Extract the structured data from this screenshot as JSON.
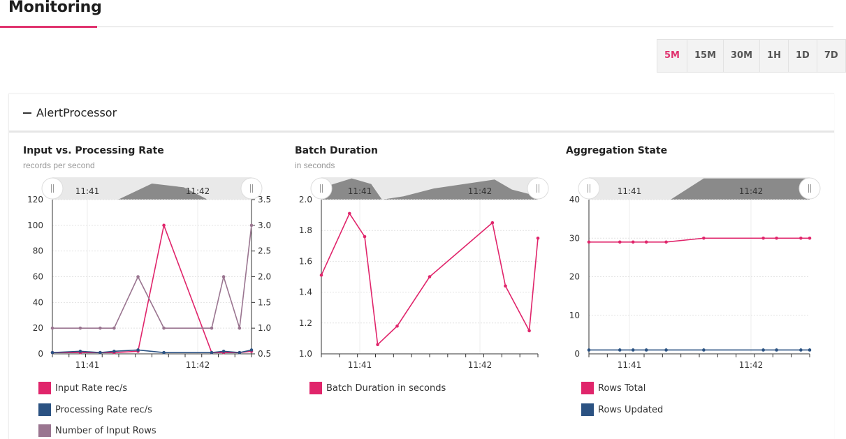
{
  "page": {
    "title": "Monitoring"
  },
  "time_range": {
    "options": [
      "5M",
      "15M",
      "30M",
      "1H",
      "1D",
      "7D"
    ],
    "selected": "5M",
    "accent": "#e0336f"
  },
  "panel": {
    "title": "AlertProcessor",
    "collapse_icon": "minus-icon"
  },
  "colors": {
    "input": "#e0256b",
    "processing": "#2b5282",
    "rows_input": "#9a7590",
    "navigator": "#8a8a8a"
  },
  "charts": [
    {
      "title": "Input vs. Processing Rate",
      "subtitle": "records per second",
      "navigator_labels": [
        "11:41",
        "11:42"
      ],
      "legend": [
        "Input Rate rec/s",
        "Processing Rate rec/s",
        "Number of Input Rows"
      ]
    },
    {
      "title": "Batch Duration",
      "subtitle": "in seconds",
      "navigator_labels": [
        "11:41",
        "11:42"
      ],
      "legend": [
        "Batch Duration in seconds"
      ]
    },
    {
      "title": "Aggregation State",
      "subtitle": "",
      "navigator_labels": [
        "11:41",
        "11:42"
      ],
      "legend": [
        "Rows Total",
        "Rows Updated"
      ]
    }
  ],
  "chart_data": [
    {
      "type": "line",
      "title": "Input vs. Processing Rate",
      "subtitle": "records per second",
      "x_ticks": [
        "11:41",
        "11:42"
      ],
      "y_left_ticks": [
        "0",
        "20",
        "40",
        "60",
        "80",
        "100",
        "120"
      ],
      "y_right_ticks": [
        "0.5",
        "1.0",
        "1.5",
        "2.0",
        "2.5",
        "3.0",
        "3.5"
      ],
      "ylim": [
        0,
        120
      ],
      "ylim_right": [
        0.5,
        3.5
      ],
      "series": [
        {
          "name": "Input Rate rec/s",
          "axis": "left",
          "color": "#e0256b",
          "points": [
            [
              0,
              1
            ],
            [
              0.14,
              1
            ],
            [
              0.24,
              1
            ],
            [
              0.31,
              1
            ],
            [
              0.43,
              2
            ],
            [
              0.56,
              100
            ],
            [
              0.8,
              1
            ],
            [
              0.86,
              1
            ],
            [
              0.94,
              1
            ],
            [
              1,
              2
            ]
          ]
        },
        {
          "name": "Processing Rate rec/s",
          "axis": "left",
          "color": "#2b5282",
          "points": [
            [
              0,
              1
            ],
            [
              0.14,
              2
            ],
            [
              0.24,
              1
            ],
            [
              0.31,
              2
            ],
            [
              0.43,
              3
            ],
            [
              0.56,
              1
            ],
            [
              0.8,
              1
            ],
            [
              0.86,
              2
            ],
            [
              0.94,
              1
            ],
            [
              1,
              3
            ]
          ]
        },
        {
          "name": "Number of Input Rows",
          "axis": "right",
          "color": "#9a7590",
          "points": [
            [
              0,
              1.0
            ],
            [
              0.14,
              1.0
            ],
            [
              0.24,
              1.0
            ],
            [
              0.31,
              1.0
            ],
            [
              0.43,
              2.0
            ],
            [
              0.56,
              1.0
            ],
            [
              0.8,
              1.0
            ],
            [
              0.86,
              2.0
            ],
            [
              0.94,
              1.0
            ],
            [
              1,
              3.0
            ]
          ]
        }
      ]
    },
    {
      "type": "line",
      "title": "Batch Duration",
      "subtitle": "in seconds",
      "x_ticks": [
        "11:41",
        "11:42"
      ],
      "y_ticks": [
        "1.0",
        "1.2",
        "1.4",
        "1.6",
        "1.8",
        "2.0"
      ],
      "ylim": [
        1.0,
        2.0
      ],
      "series": [
        {
          "name": "Batch Duration in seconds",
          "color": "#e0256b",
          "points": [
            [
              0,
              1.51
            ],
            [
              0.13,
              1.91
            ],
            [
              0.2,
              1.76
            ],
            [
              0.26,
              1.06
            ],
            [
              0.35,
              1.18
            ],
            [
              0.5,
              1.5
            ],
            [
              0.79,
              1.85
            ],
            [
              0.85,
              1.44
            ],
            [
              0.96,
              1.15
            ],
            [
              1,
              1.75
            ]
          ]
        }
      ]
    },
    {
      "type": "line",
      "title": "Aggregation State",
      "x_ticks": [
        "11:41",
        "11:42"
      ],
      "y_ticks": [
        "0",
        "10",
        "20",
        "30",
        "40"
      ],
      "ylim": [
        0,
        40
      ],
      "series": [
        {
          "name": "Rows Total",
          "color": "#e0256b",
          "points": [
            [
              0,
              29
            ],
            [
              0.14,
              29
            ],
            [
              0.2,
              29
            ],
            [
              0.26,
              29
            ],
            [
              0.35,
              29
            ],
            [
              0.52,
              30
            ],
            [
              0.79,
              30
            ],
            [
              0.85,
              30
            ],
            [
              0.96,
              30
            ],
            [
              1,
              30
            ]
          ]
        },
        {
          "name": "Rows Updated",
          "color": "#2b5282",
          "points": [
            [
              0,
              1
            ],
            [
              0.14,
              1
            ],
            [
              0.2,
              1
            ],
            [
              0.26,
              1
            ],
            [
              0.35,
              1
            ],
            [
              0.52,
              1
            ],
            [
              0.79,
              1
            ],
            [
              0.85,
              1
            ],
            [
              0.96,
              1
            ],
            [
              1,
              1
            ]
          ]
        }
      ]
    }
  ]
}
